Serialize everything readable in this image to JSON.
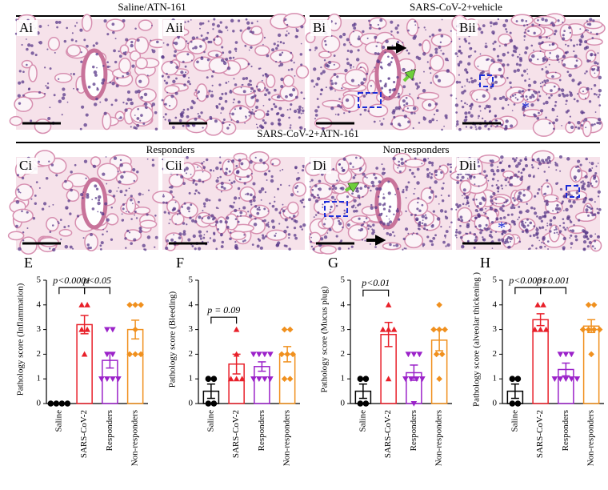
{
  "headers": [
    "Saline/ATN-161",
    "SARS-CoV-2+vehicle",
    "SARS-CoV-2+ATN-161"
  ],
  "subheaders": [
    "Responders",
    "Non-responders"
  ],
  "panel_labels": [
    "Ai",
    "Aii",
    "Bi",
    "Bii",
    "Ci",
    "Cii",
    "Di",
    "Dii"
  ],
  "symbols": [
    "*",
    "*"
  ],
  "chart_data": [
    {
      "type": "bar",
      "label": "E",
      "ylabel": "Pathology score (Inflammation)",
      "categories": [
        "Saline",
        "SARS-CoV-2",
        "Responders",
        "Non-responders"
      ],
      "colors": [
        "#000000",
        "#e8202a",
        "#9b22c9",
        "#f0901e"
      ],
      "values": [
        0,
        3.2,
        1.75,
        3.0
      ],
      "errors": [
        0,
        0.37,
        0.31,
        0.38
      ],
      "points": [
        [
          0,
          0,
          0,
          0
        ],
        [
          4,
          4,
          3,
          3,
          2
        ],
        [
          3,
          3,
          2,
          2,
          1,
          1,
          1,
          1
        ],
        [
          4,
          4,
          4,
          3,
          2,
          2,
          2
        ]
      ],
      "ylim": [
        0,
        5
      ],
      "yticks": [
        0,
        1,
        2,
        3,
        4,
        5
      ],
      "annotations": [
        "p<0.0001",
        "p<0.05"
      ]
    },
    {
      "type": "bar",
      "label": "F",
      "ylabel": "Pathology score (Bleeding)",
      "categories": [
        "Saline",
        "SARS-CoV-2",
        "Responders",
        "Non-responders"
      ],
      "colors": [
        "#000000",
        "#e8202a",
        "#9b22c9",
        "#f0901e"
      ],
      "values": [
        0.5,
        1.6,
        1.5,
        2.0
      ],
      "errors": [
        0.29,
        0.4,
        0.19,
        0.31
      ],
      "points": [
        [
          1,
          1,
          0,
          0
        ],
        [
          3,
          2,
          1,
          1,
          1
        ],
        [
          2,
          2,
          2,
          2,
          1,
          1,
          1,
          1
        ],
        [
          3,
          3,
          2,
          2,
          1,
          1,
          2
        ]
      ],
      "ylim": [
        0,
        5
      ],
      "yticks": [
        0,
        1,
        2,
        3,
        4,
        5
      ],
      "annotations": [
        "p = 0.09"
      ]
    },
    {
      "type": "bar",
      "label": "G",
      "ylabel": "Pathology score (Mucus plug)",
      "categories": [
        "Saline",
        "SARS-CoV-2",
        "Responders",
        "Non-responders"
      ],
      "colors": [
        "#000000",
        "#e8202a",
        "#9b22c9",
        "#f0901e"
      ],
      "values": [
        0.5,
        2.8,
        1.25,
        2.57
      ],
      "errors": [
        0.29,
        0.49,
        0.31,
        0.43
      ],
      "points": [
        [
          1,
          1,
          0,
          0
        ],
        [
          4,
          3,
          3,
          3,
          1
        ],
        [
          2,
          2,
          1,
          1,
          1,
          1,
          2,
          0
        ],
        [
          4,
          3,
          3,
          3,
          2,
          2,
          1
        ]
      ],
      "ylim": [
        0,
        5
      ],
      "yticks": [
        0,
        1,
        2,
        3,
        4,
        5
      ],
      "annotations": [
        "p<0.01"
      ]
    },
    {
      "type": "bar",
      "label": "H",
      "ylabel": "Pathology score (alveolar thickening )",
      "categories": [
        "Saline",
        "SARS-CoV-2",
        "Responders",
        "Non-responders"
      ],
      "colors": [
        "#000000",
        "#e8202a",
        "#9b22c9",
        "#f0901e"
      ],
      "values": [
        0.5,
        3.4,
        1.38,
        3.14
      ],
      "errors": [
        0.29,
        0.24,
        0.26,
        0.26
      ],
      "points": [
        [
          1,
          1,
          0,
          0
        ],
        [
          4,
          4,
          3,
          3,
          3
        ],
        [
          2,
          2,
          1,
          1,
          1,
          1,
          1,
          2
        ],
        [
          4,
          4,
          3,
          3,
          3,
          3,
          2
        ]
      ],
      "ylim": [
        0,
        5
      ],
      "yticks": [
        0,
        1,
        2,
        3,
        4,
        5
      ],
      "annotations": [
        "p<0.0001",
        "p<0.001"
      ]
    }
  ]
}
